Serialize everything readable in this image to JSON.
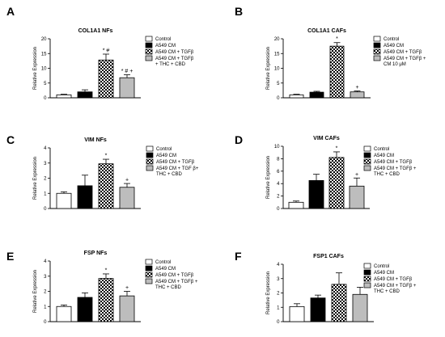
{
  "colors": {
    "control": "#ffffff",
    "a549": "#000000",
    "tgf_pattern_dark": "#000000",
    "tgf_pattern_light": "#ffffff",
    "treated": "#bdbdbd",
    "axis": "#000000"
  },
  "chart_data": [
    {
      "panel": "A",
      "type": "bar",
      "title": "COL1A1 NFs",
      "ylabel": "Relative Expression",
      "ylim": [
        0,
        20
      ],
      "yticks": [
        0,
        5,
        10,
        15,
        20
      ],
      "categories": [
        "Control",
        "A549 CM",
        "A549 CM + TGFβ",
        "A549 CM + TGFβ + THC + CBD"
      ],
      "values": [
        1.0,
        2.0,
        12.8,
        6.8
      ],
      "errors": [
        0.2,
        0.7,
        2.0,
        1.0
      ],
      "annotations": [
        "",
        "",
        "* #",
        "* # +"
      ],
      "legend": [
        [
          "Control"
        ],
        [
          "A549 CM"
        ],
        [
          "A549 CM + TGFβ"
        ],
        [
          "A549 CM + TGFβ",
          "+ THC + CBD"
        ]
      ]
    },
    {
      "panel": "B",
      "type": "bar",
      "title": "COL1A1 CAFs",
      "ylabel": "Relative Expression",
      "ylim": [
        0,
        20
      ],
      "yticks": [
        0,
        5,
        10,
        15,
        20
      ],
      "categories": [
        "Control",
        "A549 CM",
        "A549 CM + TGFβ",
        "A549 CM + TGFβ + CM 10 μM"
      ],
      "values": [
        1.0,
        1.9,
        17.5,
        2.0
      ],
      "errors": [
        0.2,
        0.3,
        1.2,
        0.3
      ],
      "annotations": [
        "",
        "",
        "*",
        "+"
      ],
      "legend": [
        [
          "Control"
        ],
        [
          "A549 CM"
        ],
        [
          "A549 CM + TGFβ"
        ],
        [
          "A549 CM + TGFβ +",
          "CM 10 μM"
        ]
      ]
    },
    {
      "panel": "C",
      "type": "bar",
      "title": "VIM NFs",
      "ylabel": "Relative Expression",
      "ylim": [
        0,
        4
      ],
      "yticks": [
        0,
        1,
        2,
        3,
        4
      ],
      "categories": [
        "Control",
        "A549 CM",
        "A549 CM + TGFβ",
        "A549 CM + TGF β+ THC + CBD"
      ],
      "values": [
        1.0,
        1.5,
        2.95,
        1.4
      ],
      "errors": [
        0.1,
        0.7,
        0.3,
        0.25
      ],
      "annotations": [
        "",
        "",
        "*",
        "+"
      ],
      "legend": [
        [
          "Control"
        ],
        [
          "A549 CM"
        ],
        [
          "A549 CM + TGFβ"
        ],
        [
          "A549 CM + TGF β+",
          "THC + CBD"
        ]
      ]
    },
    {
      "panel": "D",
      "type": "bar",
      "title": "VIM CAFs",
      "ylabel": "Relative Expression",
      "ylim": [
        0,
        10
      ],
      "yticks": [
        0,
        2,
        4,
        6,
        8,
        10
      ],
      "categories": [
        "Control",
        "A549 CM",
        "A549 CM + TGFβ",
        "A549 CM + TGFβ + THC + CBD"
      ],
      "values": [
        1.0,
        4.5,
        8.2,
        3.6
      ],
      "errors": [
        0.2,
        1.0,
        0.9,
        1.3
      ],
      "annotations": [
        "",
        "",
        "*",
        "+"
      ],
      "legend": [
        [
          "Control"
        ],
        [
          "A549 CM"
        ],
        [
          "A549 CM + TGFβ"
        ],
        [
          "A549 CM + TGFβ +",
          "THC + CBD"
        ]
      ]
    },
    {
      "panel": "E",
      "type": "bar",
      "title": "FSP NFs",
      "ylabel": "Relative Expression",
      "ylim": [
        0,
        4
      ],
      "yticks": [
        0,
        1,
        2,
        3,
        4
      ],
      "categories": [
        "Control",
        "A549 CM",
        "A549 CM + TGFβ",
        "A549 CM + TGFβ + THC + CBD"
      ],
      "values": [
        1.0,
        1.6,
        2.85,
        1.7
      ],
      "errors": [
        0.1,
        0.3,
        0.3,
        0.3
      ],
      "annotations": [
        "",
        "",
        "*",
        "+"
      ],
      "legend": [
        [
          "Control"
        ],
        [
          "A549 CM"
        ],
        [
          "A549 CM + TGFβ"
        ],
        [
          "A549 CM + TGFβ +",
          "THC + CBD"
        ]
      ]
    },
    {
      "panel": "F",
      "type": "bar",
      "title": "FSP1 CAFs",
      "ylabel": "Relative Expression",
      "ylim": [
        0,
        4
      ],
      "yticks": [
        0,
        1,
        2,
        3,
        4
      ],
      "categories": [
        "Control",
        "A549 CM",
        "A549 CM + TGFβ",
        "A549 CM + TGFβ + THC + CBD"
      ],
      "values": [
        1.05,
        1.65,
        2.6,
        1.9
      ],
      "errors": [
        0.2,
        0.2,
        0.8,
        0.5
      ],
      "annotations": [
        "",
        "",
        "",
        ""
      ],
      "legend": [
        [
          "Control"
        ],
        [
          "A549 CM"
        ],
        [
          "A549 CM + TGFβ"
        ],
        [
          "A549 CM + TGFβ +",
          "THC + CBD"
        ]
      ]
    }
  ]
}
